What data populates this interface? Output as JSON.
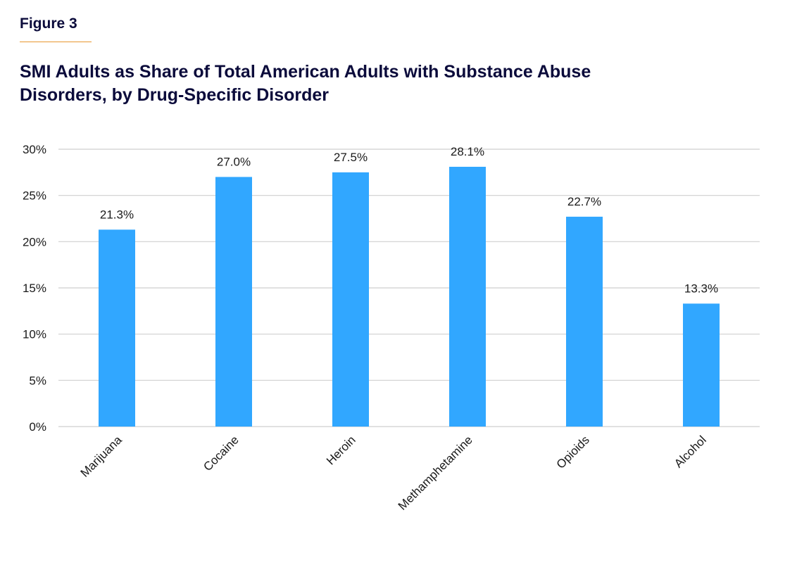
{
  "figure_label": "Figure 3",
  "colors": {
    "bar": "#31a7ff",
    "accent_rule": "#e8962e",
    "title": "#0b0b3b",
    "grid": "#cfcfcf"
  },
  "chart_data": {
    "type": "bar",
    "title": "SMI Adults as Share of Total American Adults with Substance Abuse Disorders, by Drug-Specific Disorder",
    "xlabel": "",
    "ylabel": "",
    "categories": [
      "Marijuana",
      "Cocaine",
      "Heroin",
      "Methamphetamine",
      "Opioids",
      "Alcohol"
    ],
    "values": [
      21.3,
      27.0,
      27.5,
      28.1,
      22.7,
      13.3
    ],
    "data_labels": [
      "21.3%",
      "27.0%",
      "27.5%",
      "28.1%",
      "22.7%",
      "13.3%"
    ],
    "ylim": [
      0,
      30
    ],
    "yticks": [
      0,
      5,
      10,
      15,
      20,
      25,
      30
    ],
    "ytick_labels": [
      "0%",
      "5%",
      "10%",
      "15%",
      "20%",
      "25%",
      "30%"
    ],
    "grid": true,
    "legend": "none",
    "x_tick_rotation_deg": -45
  }
}
